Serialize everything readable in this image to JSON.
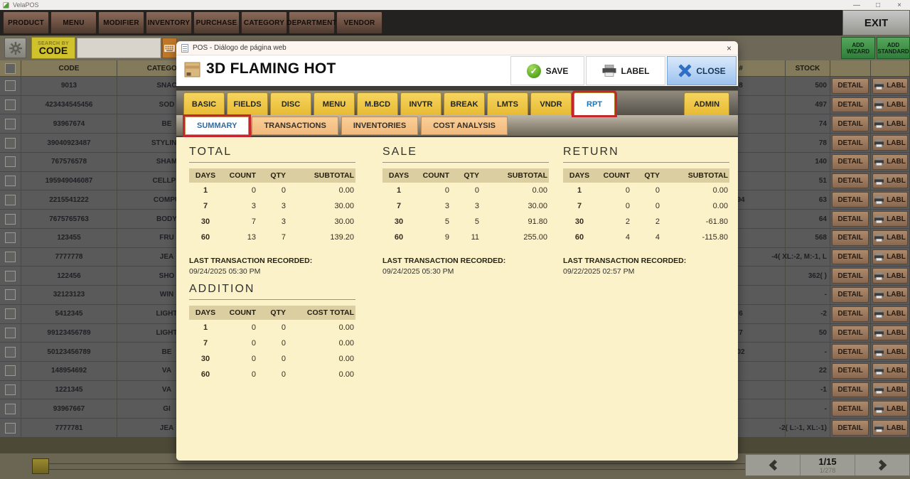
{
  "window": {
    "title": "VelaPOS",
    "controls": {
      "minimize": "—",
      "maximize": "□",
      "close": "×"
    }
  },
  "menubar": {
    "items": [
      "PRODUCT",
      "MENU",
      "MODIFIER",
      "INVENTORY",
      "PURCHASE",
      "CATEGORY",
      "DEPARTMENT",
      "VENDOR"
    ],
    "exit_label": "EXIT"
  },
  "toolbar": {
    "search_by_label": "SEARCH BY",
    "search_code_label": "CODE",
    "search_value": "",
    "add_wizard_label": "ADD WIZARD",
    "add_standard_label": "ADD STANDARD"
  },
  "product_table": {
    "headers": {
      "code": "CODE",
      "category": "CATEGORY",
      "num": "#",
      "stock": "STOCK"
    },
    "detail_label": "DETAIL",
    "label_label": "LABL",
    "rows": [
      {
        "code": "9013",
        "cat": "SNAC",
        "frag": "8",
        "stock": "500"
      },
      {
        "code": "423434545456",
        "cat": "SOD",
        "frag": "",
        "stock": "497"
      },
      {
        "code": "93967674",
        "cat": "BE",
        "frag": "",
        "stock": "74"
      },
      {
        "code": "39040923487",
        "cat": "STYLING",
        "frag": "",
        "stock": "78"
      },
      {
        "code": "767576578",
        "cat": "SHAM",
        "frag": "",
        "stock": "140"
      },
      {
        "code": "195949046087",
        "cat": "CELLPH",
        "frag": "",
        "stock": "51"
      },
      {
        "code": "2215541222",
        "cat": "COMPU",
        "frag": "94",
        "stock": "63"
      },
      {
        "code": "7675765763",
        "cat": "BODY",
        "frag": "",
        "stock": "64"
      },
      {
        "code": "123455",
        "cat": "FRU",
        "frag": "",
        "stock": "568"
      },
      {
        "code": "7777778",
        "cat": "JEA",
        "frag": "",
        "stock": "-4( XL:-2, M:-1, L"
      },
      {
        "code": "122456",
        "cat": "SHO",
        "frag": "",
        "stock": "362( )"
      },
      {
        "code": "32123123",
        "cat": "WIN",
        "frag": "",
        "stock": "-"
      },
      {
        "code": "5412345",
        "cat": "LIGHT",
        "frag": "6",
        "stock": "-2"
      },
      {
        "code": "99123456789",
        "cat": "LIGHT",
        "frag": "7",
        "stock": "50"
      },
      {
        "code": "50123456789",
        "cat": "BE",
        "frag": "02",
        "stock": "-"
      },
      {
        "code": "148954692",
        "cat": "VA",
        "frag": "",
        "stock": "22"
      },
      {
        "code": "1221345",
        "cat": "VA",
        "frag": "",
        "stock": "-1"
      },
      {
        "code": "93967667",
        "cat": "GI",
        "frag": "",
        "stock": "-"
      },
      {
        "code": "7777781",
        "cat": "JEA",
        "frag": "",
        "stock": "-2( L:-1, XL:-1)"
      }
    ]
  },
  "pagination": {
    "page": "1/15",
    "sub": "1/278"
  },
  "dialog": {
    "titlebar": "POS - Diálogo de página web",
    "titlebar_close": "×",
    "product_name": "3D FLAMING HOT",
    "actions": {
      "save": "SAVE",
      "label": "LABEL",
      "close": "CLOSE",
      "save_check": "✓"
    },
    "tabs": [
      {
        "label": "BASIC"
      },
      {
        "label": "FIELDS"
      },
      {
        "label": "DISC"
      },
      {
        "label": "MENU"
      },
      {
        "label": "M.BCD"
      },
      {
        "label": "INVTR"
      },
      {
        "label": "BREAK"
      },
      {
        "label": "LMTS"
      },
      {
        "label": "VNDR"
      },
      {
        "label": "RPT",
        "active": true
      },
      {
        "label": "ADMIN",
        "right": true
      }
    ],
    "subtabs": [
      {
        "label": "SUMMARY",
        "active": true
      },
      {
        "label": "TRANSACTIONS"
      },
      {
        "label": "INVENTORIES"
      },
      {
        "label": "COST ANALYSIS"
      }
    ],
    "report": {
      "sections": [
        {
          "title": "TOTAL",
          "columns": [
            "DAYS",
            "COUNT",
            "QTY",
            "SUBTOTAL"
          ],
          "rows": [
            [
              "1",
              "0",
              "0",
              "0.00"
            ],
            [
              "7",
              "3",
              "3",
              "30.00"
            ],
            [
              "30",
              "7",
              "3",
              "30.00"
            ],
            [
              "60",
              "13",
              "7",
              "139.20"
            ]
          ],
          "last_label": "LAST TRANSACTION RECORDED:",
          "last_value": "09/24/2025 05:30 PM"
        },
        {
          "title": "SALE",
          "columns": [
            "DAYS",
            "COUNT",
            "QTY",
            "SUBTOTAL"
          ],
          "rows": [
            [
              "1",
              "0",
              "0",
              "0.00"
            ],
            [
              "7",
              "3",
              "3",
              "30.00"
            ],
            [
              "30",
              "5",
              "5",
              "91.80"
            ],
            [
              "60",
              "9",
              "11",
              "255.00"
            ]
          ],
          "last_label": "LAST TRANSACTION RECORDED:",
          "last_value": "09/24/2025 05:30 PM"
        },
        {
          "title": "RETURN",
          "columns": [
            "DAYS",
            "COUNT",
            "QTY",
            "SUBTOTAL"
          ],
          "rows": [
            [
              "1",
              "0",
              "0",
              "0.00"
            ],
            [
              "7",
              "0",
              "0",
              "0.00"
            ],
            [
              "30",
              "2",
              "2",
              "-61.80"
            ],
            [
              "60",
              "4",
              "4",
              "-115.80"
            ]
          ],
          "last_label": "LAST TRANSACTION RECORDED:",
          "last_value": "09/22/2025 02:57 PM"
        },
        {
          "title": "ADDITION",
          "columns": [
            "DAYS",
            "COUNT",
            "QTY",
            "COST TOTAL"
          ],
          "rows": [
            [
              "1",
              "0",
              "0",
              "0.00"
            ],
            [
              "7",
              "0",
              "0",
              "0.00"
            ],
            [
              "30",
              "0",
              "0",
              "0.00"
            ],
            [
              "60",
              "0",
              "0",
              "0.00"
            ]
          ]
        }
      ]
    }
  },
  "colors": {
    "tab_yellow": "#EFC83D",
    "highlight_red": "#C1272D",
    "active_tab_blue": "#1B75BB",
    "active_subtab_blue": "#2E6DA4",
    "dialog_cream": "#FBF2CA",
    "report_header_tan": "#DBCEA1",
    "save_green": "#55A51E",
    "close_blue": "#2F6FC8",
    "subtab_peach": "#F5C28C",
    "add_button_green": "#3E9E4E",
    "menu_button_brown": "#6A4F41",
    "row_gray": "#5A5A5A"
  }
}
